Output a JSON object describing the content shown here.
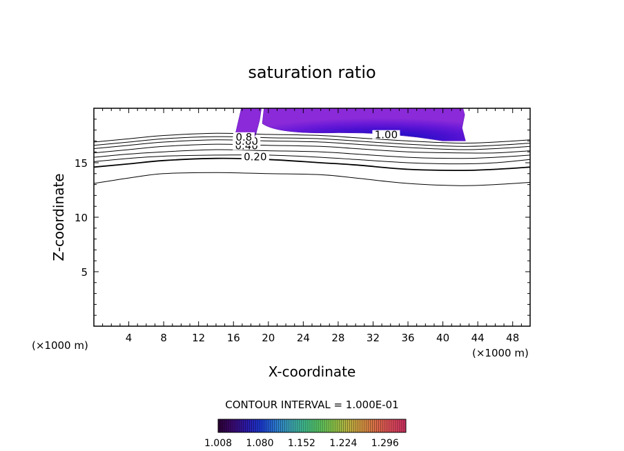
{
  "chart_data": {
    "type": "contour",
    "title": "saturation ratio",
    "xlabel": "X-coordinate",
    "ylabel": "Z-coordinate",
    "x_unit": "(×1000 m)",
    "y_unit": "(×1000 m)",
    "xlim": [
      0,
      50
    ],
    "ylim": [
      0,
      20
    ],
    "x_ticks": [
      4,
      8,
      12,
      16,
      20,
      24,
      28,
      32,
      36,
      40,
      44,
      48
    ],
    "y_ticks": [
      5,
      10,
      15
    ],
    "contour_interval_label": "CONTOUR INTERVAL = 1.000E-01",
    "contour_line_labels": [
      "0.20",
      "0.40",
      "0.60",
      "0.8",
      "1.00"
    ],
    "contour_lines": [
      {
        "label": "",
        "points": [
          [
            0,
            13.1
          ],
          [
            4,
            13.6
          ],
          [
            8,
            14.0
          ],
          [
            14,
            14.1
          ],
          [
            20,
            14.0
          ],
          [
            26,
            13.9
          ],
          [
            30,
            13.6
          ],
          [
            36,
            13.1
          ],
          [
            42,
            12.9
          ],
          [
            46,
            13.0
          ],
          [
            50,
            13.2
          ]
        ]
      },
      {
        "label": "",
        "points": [
          [
            0,
            14.6
          ],
          [
            4,
            14.9
          ],
          [
            8,
            15.2
          ],
          [
            14,
            15.4
          ],
          [
            20,
            15.3
          ],
          [
            26,
            15.0
          ],
          [
            30,
            14.8
          ],
          [
            36,
            14.4
          ],
          [
            42,
            14.3
          ],
          [
            46,
            14.4
          ],
          [
            50,
            14.6
          ]
        ]
      },
      {
        "label": "0.20",
        "points": [
          [
            0,
            15.1
          ],
          [
            4,
            15.4
          ],
          [
            8,
            15.6
          ],
          [
            14,
            15.7
          ],
          [
            20,
            15.7
          ],
          [
            26,
            15.5
          ],
          [
            30,
            15.3
          ],
          [
            36,
            15.0
          ],
          [
            42,
            14.9
          ],
          [
            46,
            15.0
          ],
          [
            50,
            15.3
          ]
        ]
      },
      {
        "label": "",
        "points": [
          [
            0,
            15.5
          ],
          [
            4,
            15.8
          ],
          [
            8,
            16.0
          ],
          [
            14,
            16.2
          ],
          [
            20,
            16.1
          ],
          [
            26,
            16.0
          ],
          [
            30,
            15.8
          ],
          [
            36,
            15.5
          ],
          [
            42,
            15.4
          ],
          [
            46,
            15.5
          ],
          [
            50,
            15.7
          ]
        ]
      },
      {
        "label": "0.40",
        "points": [
          [
            0,
            15.9
          ],
          [
            4,
            16.2
          ],
          [
            8,
            16.5
          ],
          [
            14,
            16.7
          ],
          [
            20,
            16.6
          ],
          [
            26,
            16.5
          ],
          [
            30,
            16.3
          ],
          [
            36,
            16.0
          ],
          [
            42,
            15.9
          ],
          [
            46,
            15.9
          ],
          [
            50,
            16.1
          ]
        ]
      },
      {
        "label": "0.60",
        "points": [
          [
            0,
            16.3
          ],
          [
            4,
            16.6
          ],
          [
            8,
            16.9
          ],
          [
            14,
            17.1
          ],
          [
            20,
            17.0
          ],
          [
            26,
            16.9
          ],
          [
            30,
            16.7
          ],
          [
            36,
            16.4
          ],
          [
            42,
            16.2
          ],
          [
            46,
            16.3
          ],
          [
            50,
            16.5
          ]
        ]
      },
      {
        "label": "0.8",
        "points": [
          [
            0,
            16.6
          ],
          [
            4,
            16.9
          ],
          [
            8,
            17.2
          ],
          [
            14,
            17.4
          ],
          [
            20,
            17.3
          ],
          [
            26,
            17.2
          ],
          [
            30,
            17.0
          ],
          [
            36,
            16.7
          ],
          [
            42,
            16.5
          ],
          [
            46,
            16.6
          ],
          [
            50,
            16.8
          ]
        ]
      },
      {
        "label": "1.00",
        "points": [
          [
            0,
            16.9
          ],
          [
            4,
            17.2
          ],
          [
            8,
            17.5
          ],
          [
            14,
            17.7
          ],
          [
            20,
            17.6
          ],
          [
            26,
            17.5
          ],
          [
            30,
            17.3
          ],
          [
            36,
            17.0
          ],
          [
            42,
            16.8
          ],
          [
            46,
            16.9
          ],
          [
            50,
            17.1
          ]
        ]
      }
    ],
    "colorbar": {
      "ticks": [
        "1.008",
        "1.080",
        "1.152",
        "1.224",
        "1.296"
      ],
      "min": 1.008,
      "max": 1.332,
      "colors": [
        "#2a0033",
        "#3a0a6e",
        "#2a1aa8",
        "#1a3acc",
        "#2a78cc",
        "#3aa0b0",
        "#40b888",
        "#58c060",
        "#88c048",
        "#b8b040",
        "#d09040",
        "#d86848",
        "#d84858",
        "#c83060"
      ]
    },
    "filled_region": {
      "description": "supersaturated region near top of domain",
      "x_range": [
        16.2,
        42.6
      ],
      "z_range": [
        17.0,
        20.0
      ],
      "max_value_near": [
        32,
        17.8
      ],
      "colors": [
        "#8a2ad8",
        "#6a1ad8",
        "#4a10d0",
        "#2a10c8",
        "#1a20d8"
      ]
    }
  }
}
